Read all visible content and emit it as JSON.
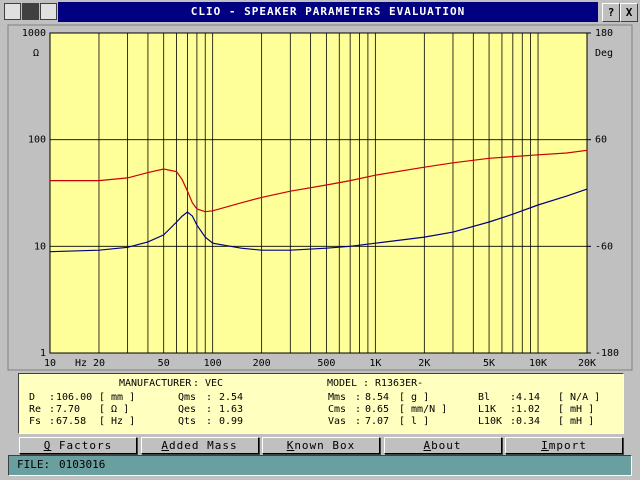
{
  "window": {
    "title": "CLIO - SPEAKER PARAMETERS EVALUATION",
    "help": "?",
    "close": "X"
  },
  "chart_data": {
    "type": "line",
    "xscale": "log",
    "yscale": "log",
    "grid": true,
    "plot_background": "#ffff99",
    "x": [
      10,
      20,
      30,
      40,
      50,
      60,
      65,
      70,
      75,
      80,
      90,
      100,
      150,
      200,
      300,
      500,
      700,
      1000,
      2000,
      3000,
      5000,
      7000,
      10000,
      15000,
      20000
    ],
    "series": [
      {
        "color": "#000080",
        "values": [
          8.9,
          9.2,
          9.8,
          11,
          12.8,
          16.9,
          19.2,
          21,
          19.2,
          15.8,
          12.2,
          10.7,
          9.6,
          9.2,
          9.2,
          9.6,
          10,
          10.7,
          12.2,
          13.6,
          16.9,
          20,
          24.4,
          29.6,
          34.4
        ]
      },
      {
        "color": "#cc0000",
        "axis": "y2",
        "values": [
          14,
          14,
          17,
          23,
          27,
          24,
          15,
          2,
          -11,
          -18,
          -21,
          -20,
          -11,
          -5,
          2,
          9,
          14,
          20,
          29,
          34,
          39,
          41,
          43,
          45,
          48
        ]
      }
    ],
    "xlim": [
      10,
      20000
    ],
    "xticks": [
      10,
      20,
      50,
      100,
      200,
      500,
      {
        "value": 1000,
        "label": "1K"
      },
      {
        "value": 2000,
        "label": "2K"
      },
      {
        "value": 5000,
        "label": "5K"
      },
      {
        "value": 10000,
        "label": "10K"
      },
      {
        "value": 20000,
        "label": "20K"
      }
    ],
    "xminor": [
      30,
      40,
      60,
      70,
      80,
      90,
      300,
      400,
      600,
      700,
      800,
      900,
      3000,
      4000,
      6000,
      7000,
      8000,
      9000
    ],
    "x_unit": "Hz",
    "ylim": [
      1,
      1000
    ],
    "yticks": [
      1,
      10,
      100,
      1000
    ],
    "y_unit": "Ω",
    "y2lim": [
      -180,
      180
    ],
    "y2ticks": [
      -180,
      -60,
      60,
      180
    ],
    "y2_unit": "Deg"
  },
  "parameters": {
    "manufacturer_label": "MANUFACTURER",
    "manufacturer": "VEC",
    "model_label": "MODEL",
    "model": "R1363ER-",
    "columns": [
      [
        {
          "label": "D",
          "value": "106.00",
          "unit": "[ mm ]"
        },
        {
          "label": "Re",
          "value": "7.70",
          "unit": "[ Ω ]"
        },
        {
          "label": "Fs",
          "value": "67.58",
          "unit": "[ Hz ]"
        }
      ],
      [
        {
          "label": "Qms",
          "value": "2.54"
        },
        {
          "label": "Qes",
          "value": "1.63"
        },
        {
          "label": "Qts",
          "value": "0.99"
        }
      ],
      [
        {
          "label": "Mms",
          "value": "8.54",
          "unit": "[ g ]"
        },
        {
          "label": "Cms",
          "value": "0.65",
          "unit": "[ mm/N ]"
        },
        {
          "label": "Vas",
          "value": "7.07",
          "unit": "[ l ]"
        }
      ],
      [
        {
          "label": "Bl",
          "value": "4.14",
          "unit": "[ N/A ]"
        },
        {
          "label": "L1K",
          "value": "1.02",
          "unit": "[ mH ]"
        },
        {
          "label": "L10K",
          "value": "0.34",
          "unit": "[ mH ]"
        }
      ]
    ]
  },
  "buttons": [
    "Q Factors",
    "Added Mass",
    "Known Box",
    "About",
    "Import"
  ],
  "status": {
    "label": "FILE:",
    "value": "0103016"
  }
}
